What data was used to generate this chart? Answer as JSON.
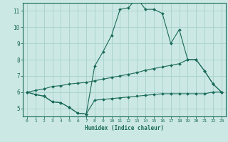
{
  "title": "",
  "xlabel": "Humidex (Indice chaleur)",
  "bg_color": "#cce8e4",
  "line_color": "#1a6b5a",
  "grid_color": "#aad4cf",
  "xlim": [
    -0.5,
    23.5
  ],
  "ylim": [
    4.5,
    11.5
  ],
  "xticks": [
    0,
    1,
    2,
    3,
    4,
    5,
    6,
    7,
    8,
    9,
    10,
    11,
    12,
    13,
    14,
    15,
    16,
    17,
    18,
    19,
    20,
    21,
    22,
    23
  ],
  "yticks": [
    5,
    6,
    7,
    8,
    9,
    10,
    11
  ],
  "series_main": {
    "x": [
      0,
      1,
      2,
      3,
      4,
      5,
      6,
      7,
      8,
      9,
      10,
      11,
      12,
      13,
      14,
      15,
      16,
      17,
      18,
      19,
      20,
      21,
      22,
      23
    ],
    "y": [
      6.0,
      5.85,
      5.75,
      5.4,
      5.35,
      5.05,
      4.7,
      4.65,
      7.6,
      8.5,
      9.5,
      11.1,
      11.2,
      11.8,
      11.1,
      11.1,
      10.85,
      9.0,
      9.85,
      8.0,
      8.0,
      7.3,
      6.5,
      6.0
    ]
  },
  "series_min": {
    "x": [
      0,
      1,
      2,
      3,
      4,
      5,
      6,
      7,
      8,
      9,
      10,
      11,
      12,
      13,
      14,
      15,
      16,
      17,
      18,
      19,
      20,
      21,
      22,
      23
    ],
    "y": [
      6.0,
      5.85,
      5.75,
      5.4,
      5.35,
      5.05,
      4.7,
      4.65,
      5.5,
      5.55,
      5.6,
      5.65,
      5.7,
      5.75,
      5.8,
      5.85,
      5.9,
      5.9,
      5.9,
      5.9,
      5.9,
      5.9,
      6.0,
      6.0
    ]
  },
  "series_trend": {
    "x": [
      0,
      1,
      2,
      3,
      4,
      5,
      6,
      7,
      8,
      9,
      10,
      11,
      12,
      13,
      14,
      15,
      16,
      17,
      18,
      19,
      20,
      21,
      22,
      23
    ],
    "y": [
      6.0,
      6.1,
      6.2,
      6.35,
      6.4,
      6.5,
      6.55,
      6.6,
      6.7,
      6.8,
      6.9,
      7.0,
      7.1,
      7.2,
      7.35,
      7.45,
      7.55,
      7.65,
      7.75,
      8.0,
      8.0,
      7.3,
      6.5,
      6.0
    ]
  }
}
